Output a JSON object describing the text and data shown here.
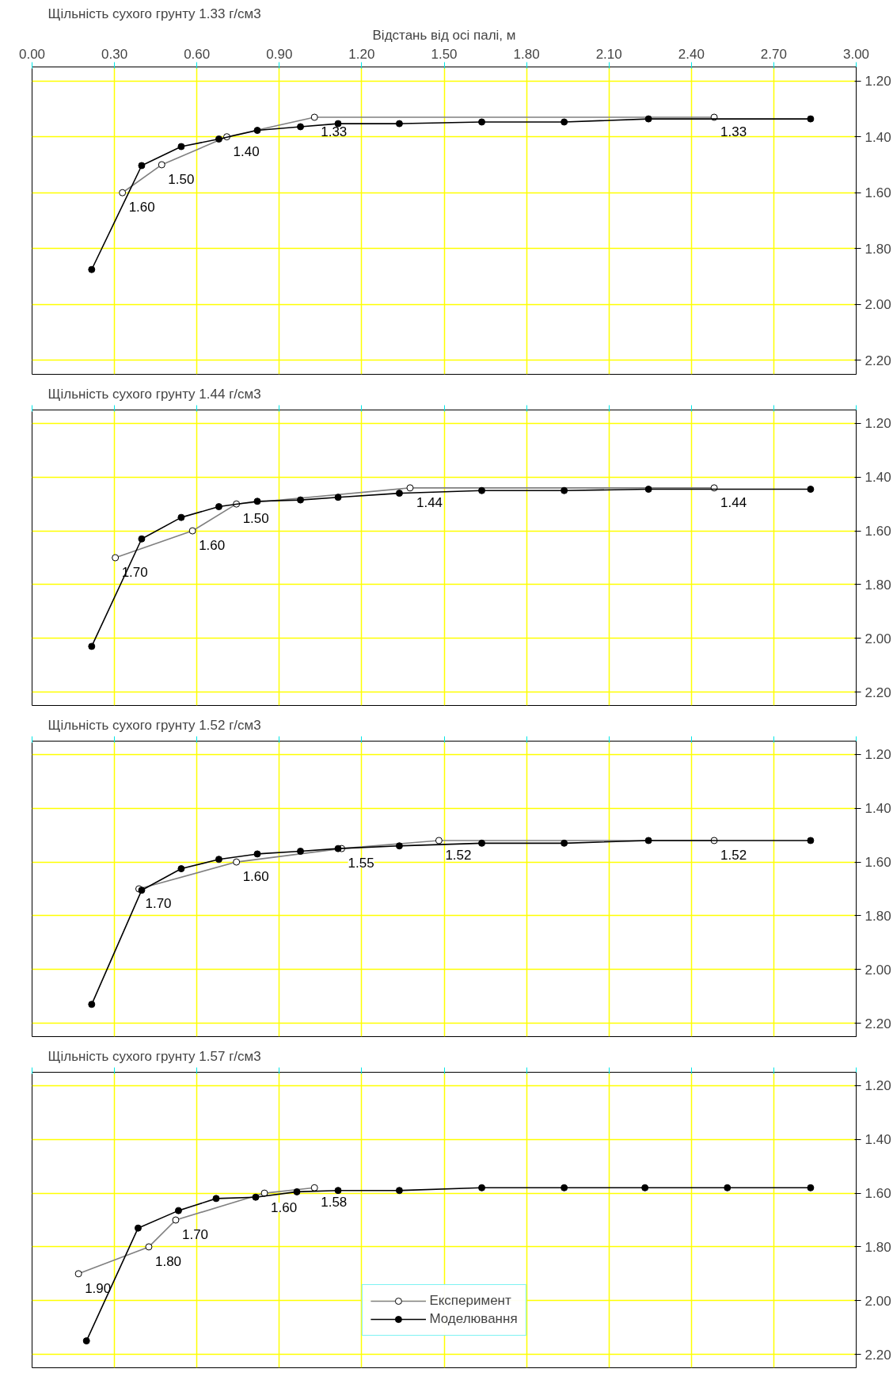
{
  "chart_data": [
    {
      "type": "line",
      "title": "Щільність сухого грунту 1.33 г/см3",
      "xlabel": "Відстань від осі палі, м",
      "xlim": [
        0,
        3
      ],
      "ylim": [
        2.25,
        1.15
      ],
      "xticks": [
        {
          "value": 0,
          "label": "0.00"
        },
        {
          "value": 0.3,
          "label": "0.30"
        },
        {
          "value": 0.6,
          "label": "0.60"
        },
        {
          "value": 0.9,
          "label": "0.90"
        },
        {
          "value": 1.2,
          "label": "1.20"
        },
        {
          "value": 1.5,
          "label": "1.50"
        },
        {
          "value": 1.8,
          "label": "1.80"
        },
        {
          "value": 2.1,
          "label": "2.10"
        },
        {
          "value": 2.4,
          "label": "2.40"
        },
        {
          "value": 2.7,
          "label": "2.70"
        },
        {
          "value": 3.0,
          "label": "3.00"
        }
      ],
      "yticks": [
        {
          "value": 1.2,
          "label": "1.20"
        },
        {
          "value": 1.4,
          "label": "1.40"
        },
        {
          "value": 1.6,
          "label": "1.60"
        },
        {
          "value": 1.8,
          "label": "1.80"
        },
        {
          "value": 2.0,
          "label": "2.00"
        },
        {
          "value": 2.2,
          "label": "2.20"
        }
      ],
      "grid": true,
      "marker": "circle",
      "series": [
        {
          "color": "#808080",
          "x": [
            0.329,
            0.472,
            0.709,
            1.028,
            2.483
          ],
          "values": [
            1.6,
            1.5,
            1.4,
            1.33,
            1.33
          ],
          "value_labels": [
            "1.60",
            "1.50",
            "1.40",
            "1.33",
            "1.33"
          ]
        },
        {
          "color": "#000000",
          "x": [
            0.217,
            0.399,
            0.543,
            0.68,
            0.82,
            0.977,
            1.114,
            1.337,
            1.637,
            1.937,
            2.244,
            2.834
          ],
          "values": [
            1.875,
            1.503,
            1.435,
            1.408,
            1.377,
            1.364,
            1.353,
            1.353,
            1.347,
            1.347,
            1.336,
            1.336
          ]
        }
      ]
    },
    {
      "type": "line",
      "title": "Щільність сухого грунту 1.44 г/см3",
      "xlim": [
        0,
        3
      ],
      "ylim": [
        2.25,
        1.15
      ],
      "tick_labels": "y",
      "xticks": [
        {
          "value": 0,
          "label": null
        },
        {
          "value": 0.3,
          "label": null
        },
        {
          "value": 0.6,
          "label": null
        },
        {
          "value": 0.9,
          "label": null
        },
        {
          "value": 1.2,
          "label": null
        },
        {
          "value": 1.5,
          "label": null
        },
        {
          "value": 1.8,
          "label": null
        },
        {
          "value": 2.1,
          "label": null
        },
        {
          "value": 2.4,
          "label": null
        },
        {
          "value": 2.7,
          "label": null
        },
        {
          "value": 3.0,
          "label": null
        }
      ],
      "yticks": [
        {
          "value": 1.2,
          "label": "1.20"
        },
        {
          "value": 1.4,
          "label": "1.40"
        },
        {
          "value": 1.6,
          "label": "1.60"
        },
        {
          "value": 1.8,
          "label": "1.80"
        },
        {
          "value": 2.0,
          "label": "2.00"
        },
        {
          "value": 2.2,
          "label": "2.20"
        }
      ],
      "grid": true,
      "marker": "circle",
      "series": [
        {
          "color": "#808080",
          "x": [
            0.303,
            0.584,
            0.744,
            1.376,
            2.483
          ],
          "values": [
            1.7,
            1.6,
            1.5,
            1.44,
            1.44
          ],
          "value_labels": [
            "1.70",
            "1.60",
            "1.50",
            "1.44",
            "1.44"
          ]
        },
        {
          "color": "#000000",
          "x": [
            0.217,
            0.399,
            0.543,
            0.68,
            0.82,
            0.977,
            1.114,
            1.337,
            1.637,
            1.937,
            2.244,
            2.834
          ],
          "values": [
            2.03,
            1.63,
            1.55,
            1.51,
            1.49,
            1.485,
            1.475,
            1.46,
            1.45,
            1.45,
            1.445,
            1.445
          ]
        }
      ]
    },
    {
      "type": "line",
      "title": "Щільність сухого грунту 1.52 г/см3",
      "xlim": [
        0,
        3
      ],
      "ylim": [
        2.25,
        1.15
      ],
      "tick_labels": "y",
      "xticks": [
        {
          "value": 0,
          "label": null
        },
        {
          "value": 0.3,
          "label": null
        },
        {
          "value": 0.6,
          "label": null
        },
        {
          "value": 0.9,
          "label": null
        },
        {
          "value": 1.2,
          "label": null
        },
        {
          "value": 1.5,
          "label": null
        },
        {
          "value": 1.8,
          "label": null
        },
        {
          "value": 2.1,
          "label": null
        },
        {
          "value": 2.4,
          "label": null
        },
        {
          "value": 2.7,
          "label": null
        },
        {
          "value": 3.0,
          "label": null
        }
      ],
      "yticks": [
        {
          "value": 1.2,
          "label": "1.20"
        },
        {
          "value": 1.4,
          "label": "1.40"
        },
        {
          "value": 1.6,
          "label": "1.60"
        },
        {
          "value": 1.8,
          "label": "1.80"
        },
        {
          "value": 2.0,
          "label": "2.00"
        },
        {
          "value": 2.2,
          "label": "2.20"
        }
      ],
      "grid": true,
      "marker": "circle",
      "series": [
        {
          "color": "#808080",
          "x": [
            0.389,
            0.744,
            1.127,
            1.481,
            2.483
          ],
          "values": [
            1.7,
            1.6,
            1.55,
            1.52,
            1.52
          ],
          "value_labels": [
            "1.70",
            "1.60",
            "1.55",
            "1.52",
            "1.52"
          ]
        },
        {
          "color": "#000000",
          "x": [
            0.217,
            0.399,
            0.543,
            0.68,
            0.82,
            0.977,
            1.114,
            1.337,
            1.637,
            1.937,
            2.244,
            2.834
          ],
          "values": [
            2.13,
            1.705,
            1.625,
            1.59,
            1.57,
            1.56,
            1.55,
            1.54,
            1.53,
            1.53,
            1.52,
            1.52
          ]
        }
      ]
    },
    {
      "type": "line",
      "title": "Щільність сухого грунту 1.57 г/см3",
      "xlim": [
        0,
        3
      ],
      "ylim": [
        2.25,
        1.15
      ],
      "tick_labels": "y",
      "xticks": [
        {
          "value": 0,
          "label": null
        },
        {
          "value": 0.3,
          "label": null
        },
        {
          "value": 0.6,
          "label": null
        },
        {
          "value": 0.9,
          "label": null
        },
        {
          "value": 1.2,
          "label": null
        },
        {
          "value": 1.5,
          "label": null
        },
        {
          "value": 1.8,
          "label": null
        },
        {
          "value": 2.1,
          "label": null
        },
        {
          "value": 2.4,
          "label": null
        },
        {
          "value": 2.7,
          "label": null
        },
        {
          "value": 3.0,
          "label": null
        }
      ],
      "yticks": [
        {
          "value": 1.2,
          "label": "1.20"
        },
        {
          "value": 1.4,
          "label": "1.40"
        },
        {
          "value": 1.6,
          "label": "1.60"
        },
        {
          "value": 1.8,
          "label": "1.80"
        },
        {
          "value": 2.0,
          "label": "2.00"
        },
        {
          "value": 2.2,
          "label": "2.20"
        }
      ],
      "grid": true,
      "marker": "circle",
      "legend": "bottom",
      "series": [
        {
          "name": "Експеримент",
          "color": "#808080",
          "x": [
            0.169,
            0.425,
            0.523,
            0.846,
            1.028
          ],
          "values": [
            1.9,
            1.8,
            1.7,
            1.6,
            1.58
          ],
          "value_labels": [
            "1.90",
            "1.80",
            "1.70",
            "1.60",
            "1.58"
          ]
        },
        {
          "name": "Моделювання",
          "color": "#000000",
          "x": [
            0.198,
            0.386,
            0.533,
            0.67,
            0.814,
            0.964,
            1.114,
            1.337,
            1.637,
            1.937,
            2.231,
            2.531,
            2.834
          ],
          "values": [
            2.15,
            1.73,
            1.665,
            1.62,
            1.615,
            1.595,
            1.59,
            1.59,
            1.58,
            1.58,
            1.58,
            1.58,
            1.58
          ]
        }
      ]
    }
  ]
}
